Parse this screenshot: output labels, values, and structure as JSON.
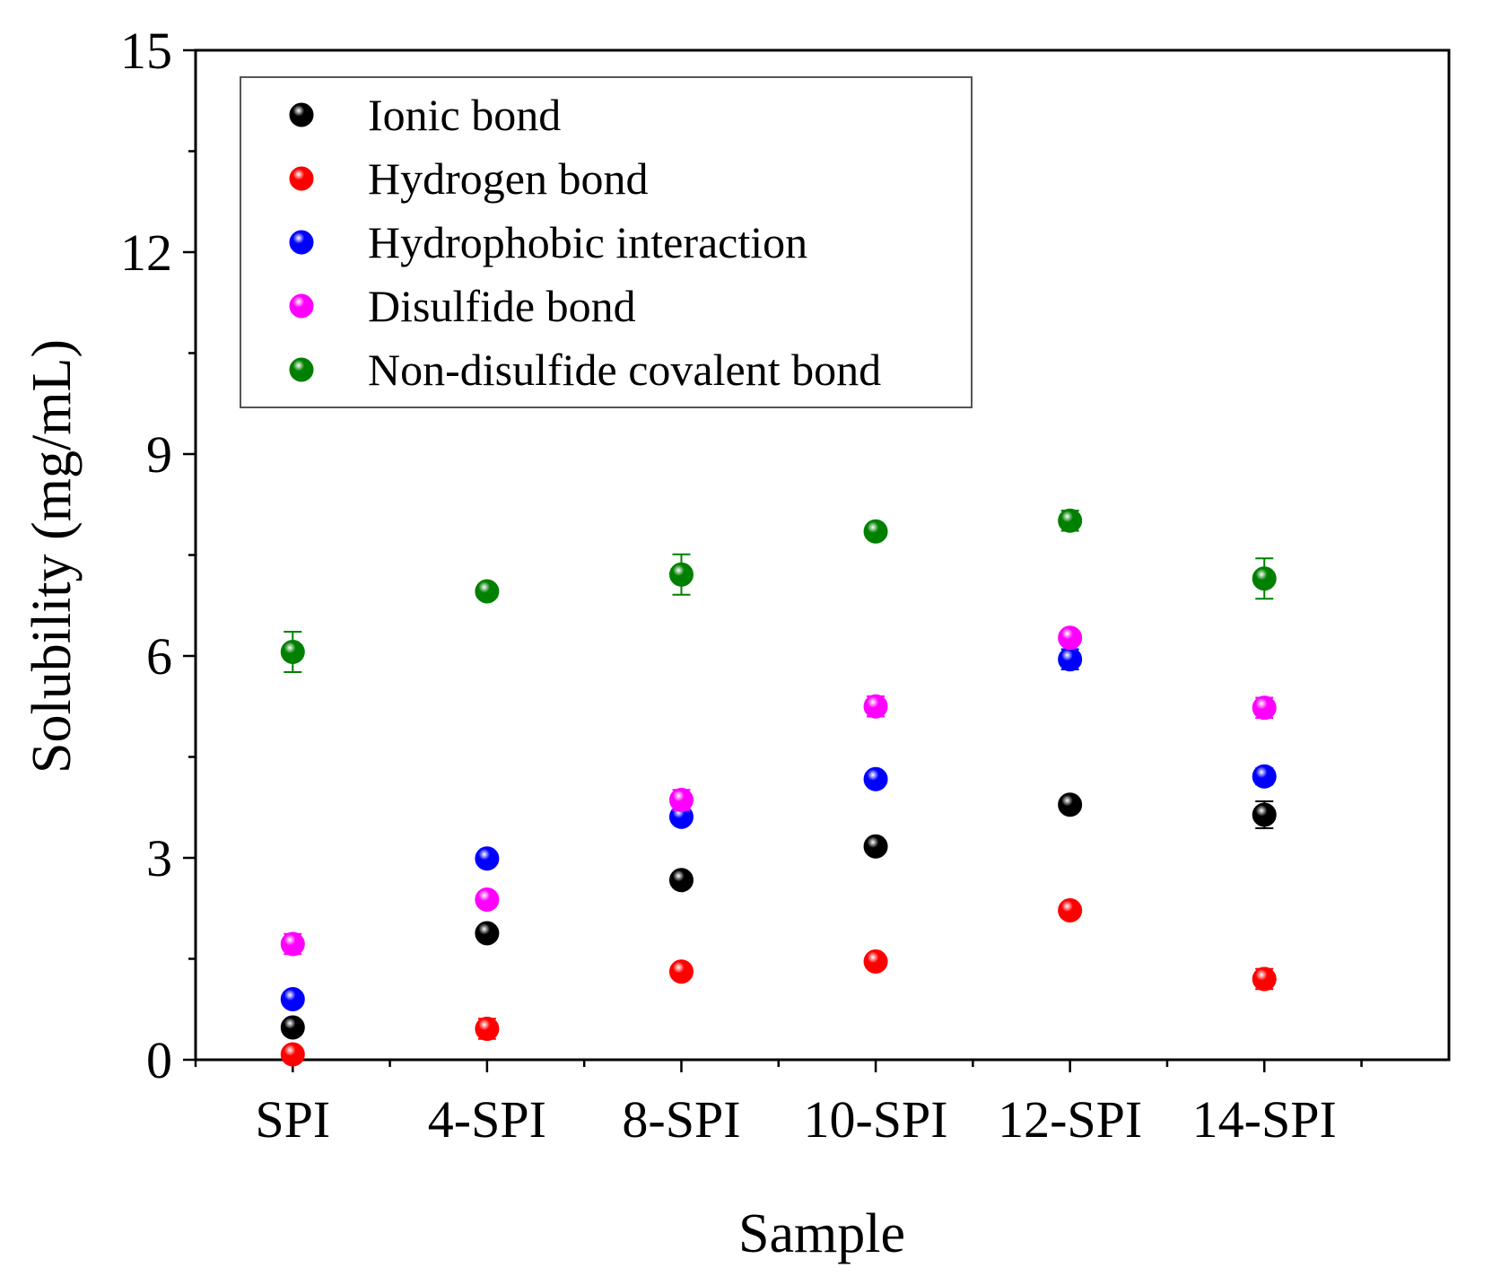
{
  "chart_data": {
    "type": "scatter",
    "title": "",
    "xlabel": "Sample",
    "ylabel": "Solubility (mg/mL)",
    "categories": [
      "SPI",
      "4-SPI",
      "8-SPI",
      "10-SPI",
      "12-SPI",
      "14-SPI"
    ],
    "ylim": [
      0,
      15
    ],
    "yticks": [
      0,
      3,
      6,
      9,
      12,
      15
    ],
    "legend_position": "top-left",
    "grid": false,
    "series": [
      {
        "name": "Ionic bond",
        "color": "#000000",
        "values": [
          0.48,
          1.88,
          2.67,
          3.17,
          3.79,
          3.64
        ],
        "errors": [
          0.08,
          0.08,
          0.08,
          0.08,
          0.08,
          0.2
        ]
      },
      {
        "name": "Hydrogen bond",
        "color": "#ff0000",
        "values": [
          0.08,
          0.46,
          1.31,
          1.46,
          2.22,
          1.2
        ],
        "errors": [
          0.05,
          0.15,
          0.08,
          0.08,
          0.08,
          0.15
        ]
      },
      {
        "name": "Hydrophobic interaction",
        "color": "#0000ff",
        "values": [
          0.9,
          2.99,
          3.61,
          4.17,
          5.95,
          4.21
        ],
        "errors": [
          0.05,
          0.08,
          0.08,
          0.08,
          0.15,
          0.12
        ]
      },
      {
        "name": "Disulfide bond",
        "color": "#ff00ff",
        "values": [
          1.72,
          2.38,
          3.86,
          5.25,
          6.27,
          5.23
        ],
        "errors": [
          0.15,
          0.1,
          0.15,
          0.15,
          0.1,
          0.15
        ]
      },
      {
        "name": "Non-disulfide covalent bond",
        "color": "#008000",
        "values": [
          6.06,
          6.96,
          7.21,
          7.85,
          8.01,
          7.15
        ],
        "errors": [
          0.3,
          0.1,
          0.3,
          0.08,
          0.15,
          0.3
        ]
      }
    ]
  }
}
